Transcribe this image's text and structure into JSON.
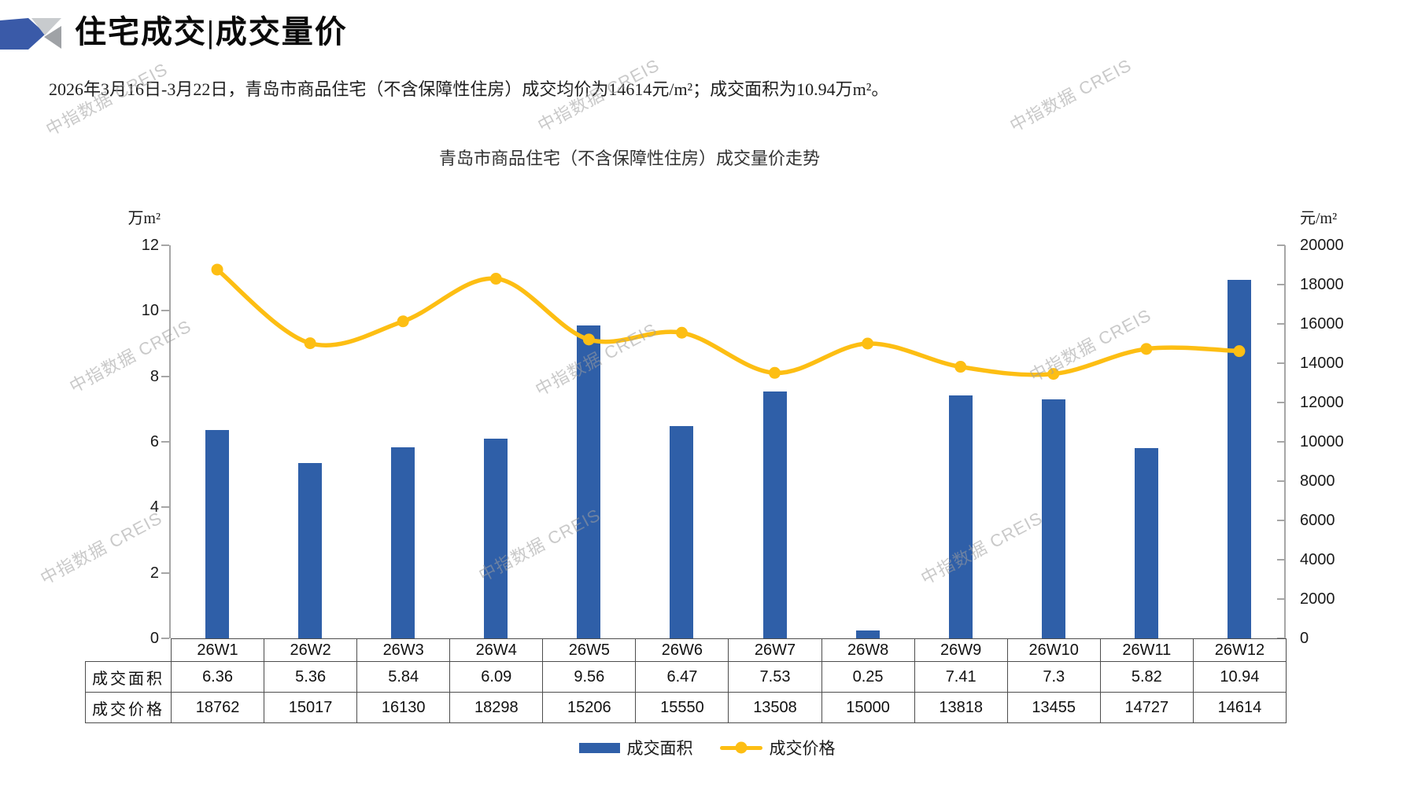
{
  "page": {
    "title": "住宅成交|成交量价",
    "subtitle": "2026年3月16日-3月22日，青岛市商品住宅（不含保障性住房）成交均价为14614元/m²；成交面积为10.94万m²。",
    "watermark": "中指数据 CREIS"
  },
  "chart_data": {
    "type": "bar",
    "combo": "bar+line",
    "title": "青岛市商品住宅（不含保障性住房）成交量价走势",
    "categories": [
      "26W1",
      "26W2",
      "26W3",
      "26W4",
      "26W5",
      "26W6",
      "26W7",
      "26W8",
      "26W9",
      "26W10",
      "26W11",
      "26W12"
    ],
    "series": [
      {
        "name": "成交面积",
        "type": "bar",
        "axis": "left",
        "color": "#2F5FA8",
        "values": [
          6.36,
          5.36,
          5.84,
          6.09,
          9.56,
          6.47,
          7.53,
          0.25,
          7.41,
          7.3,
          5.82,
          10.94
        ]
      },
      {
        "name": "成交价格",
        "type": "line",
        "axis": "right",
        "color": "#FDBE13",
        "values": [
          18762,
          15017,
          16130,
          18298,
          15206,
          15550,
          13508,
          15000,
          13818,
          13455,
          14727,
          14614
        ]
      }
    ],
    "left_axis": {
      "unit": "万m²",
      "min": 0,
      "max": 12,
      "step": 2
    },
    "right_axis": {
      "unit": "元/m²",
      "min": 0,
      "max": 20000,
      "step": 2000
    },
    "legend": [
      "成交面积",
      "成交价格"
    ],
    "grid": false,
    "legend_position": "bottom"
  }
}
